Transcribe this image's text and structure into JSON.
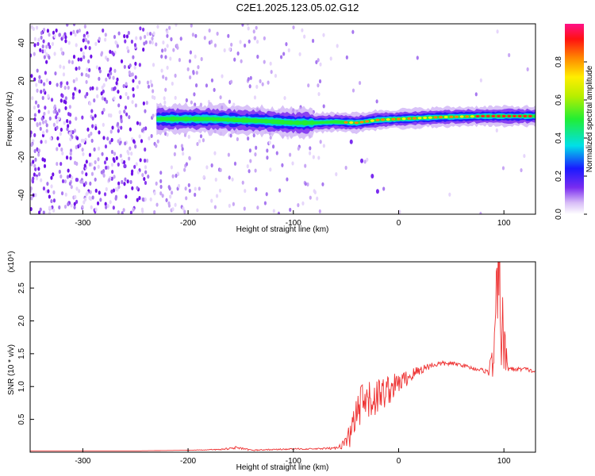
{
  "title": "C2E1.2025.123.05.02.G12",
  "chart_data": [
    {
      "type": "heatmap",
      "xlabel": "Height of straight line (km)",
      "ylabel": "Frequency (Hz)",
      "xlim": [
        -350,
        130
      ],
      "ylim": [
        -50,
        50
      ],
      "xticks": [
        -300,
        -200,
        -100,
        0,
        100
      ],
      "yticks": [
        -40,
        -20,
        0,
        20,
        40
      ],
      "grid": false,
      "colorbar": {
        "label": "Normalized spectral amplitude",
        "range": [
          0,
          1
        ],
        "ticks": [
          "0.0",
          "0.2",
          "0.4",
          "0.6",
          "0.8"
        ]
      },
      "ridge": {
        "description_values": "strong signal band centred near 0 Hz from about -230 km to 130 km",
        "center_freq_hz": [
          [
            -230,
            0.0
          ],
          [
            -180,
            0.0
          ],
          [
            -130,
            -1.0
          ],
          [
            -100,
            -2.0
          ],
          [
            -80,
            -2.0
          ],
          [
            -60,
            -1.5
          ],
          [
            -40,
            -2.0
          ],
          [
            -20,
            -0.5
          ],
          [
            0,
            0.0
          ],
          [
            40,
            1.0
          ],
          [
            80,
            1.5
          ],
          [
            100,
            1.5
          ],
          [
            130,
            1.5
          ]
        ],
        "tail": [
          [
            -45,
            -12
          ],
          [
            -35,
            -22
          ],
          [
            -25,
            -30
          ],
          [
            -20,
            -38
          ]
        ]
      }
    },
    {
      "type": "line",
      "xlabel": "Height of straight line (km)",
      "ylabel": "SNR (10 * v/v)",
      "y_multiplier_label": "(x10⁴)",
      "xlim": [
        -350,
        130
      ],
      "ylim": [
        0,
        2.9
      ],
      "xticks": [
        -300,
        -200,
        -100,
        0,
        100
      ],
      "yticks": [
        0.5,
        1.0,
        1.5,
        2.0,
        2.5
      ],
      "color": "#ee3333",
      "series": [
        {
          "x": [
            -350,
            -300,
            -250,
            -200,
            -170,
            -155,
            -140,
            -120,
            -100,
            -80,
            -60,
            -50,
            -45,
            -40,
            -35,
            -30,
            -25,
            -20,
            -15,
            -10,
            -5,
            0,
            10,
            20,
            30,
            40,
            50,
            60,
            70,
            80,
            85,
            90,
            92,
            94,
            96,
            98,
            100,
            105,
            110,
            120,
            130
          ],
          "y": [
            0.02,
            0.02,
            0.02,
            0.03,
            0.04,
            0.07,
            0.03,
            0.04,
            0.05,
            0.05,
            0.06,
            0.15,
            0.3,
            0.55,
            0.7,
            0.75,
            0.8,
            0.85,
            0.9,
            0.95,
            1.0,
            1.05,
            1.15,
            1.25,
            1.32,
            1.35,
            1.35,
            1.33,
            1.28,
            1.25,
            1.22,
            1.4,
            1.8,
            2.4,
            2.9,
            2.0,
            1.5,
            1.28,
            1.26,
            1.27,
            1.22
          ],
          "noise_amplitude": [
            0,
            0,
            0,
            0,
            0.01,
            0.02,
            0.01,
            0.01,
            0.01,
            0.01,
            0.02,
            0.1,
            0.25,
            0.35,
            0.35,
            0.3,
            0.3,
            0.3,
            0.25,
            0.25,
            0.2,
            0.15,
            0.12,
            0.08,
            0.05,
            0.04,
            0.03,
            0.03,
            0.03,
            0.03,
            0.05,
            0.3,
            0.6,
            0.9,
            1.1,
            0.9,
            0.5,
            0.04,
            0.03,
            0.03,
            0.03
          ]
        }
      ]
    }
  ]
}
